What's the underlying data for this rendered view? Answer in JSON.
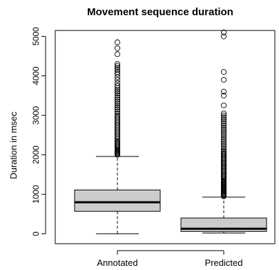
{
  "chart_data": {
    "type": "boxplot",
    "title": "Movement sequence duration",
    "xlabel": "",
    "ylabel": "Duration in msec",
    "ylim": [
      -250,
      5150
    ],
    "yticks": [
      0,
      1000,
      2000,
      3000,
      4000,
      5000
    ],
    "grid": false,
    "legend": "none",
    "box_fill": "#cccccc",
    "categories": [
      "Annotated",
      "Predicted"
    ],
    "boxes": [
      {
        "name": "Annotated",
        "whisker_low": 0,
        "q1": 570,
        "median": 800,
        "q3": 1110,
        "whisker_high": 1960,
        "outliers": [
          2000,
          2020,
          2040,
          2060,
          2080,
          2100,
          2120,
          2150,
          2180,
          2210,
          2240,
          2270,
          2300,
          2330,
          2360,
          2400,
          2440,
          2480,
          2520,
          2560,
          2600,
          2640,
          2680,
          2720,
          2760,
          2800,
          2840,
          2880,
          2920,
          2960,
          3000,
          3050,
          3100,
          3150,
          3200,
          3250,
          3300,
          3350,
          3400,
          3450,
          3500,
          3550,
          3600,
          3650,
          3700,
          3750,
          3820,
          3900,
          3970,
          4050,
          4100,
          4150,
          4200,
          4250,
          4300,
          4550,
          4700,
          4850
        ]
      },
      {
        "name": "Predicted",
        "whisker_low": 20,
        "q1": 60,
        "median": 130,
        "q3": 400,
        "whisker_high": 930,
        "outliers": [
          950,
          970,
          990,
          1010,
          1030,
          1050,
          1070,
          1090,
          1110,
          1130,
          1150,
          1170,
          1190,
          1210,
          1230,
          1250,
          1270,
          1290,
          1310,
          1330,
          1350,
          1380,
          1410,
          1440,
          1470,
          1500,
          1530,
          1560,
          1590,
          1620,
          1650,
          1680,
          1710,
          1740,
          1770,
          1800,
          1830,
          1860,
          1890,
          1920,
          1950,
          1980,
          2010,
          2040,
          2070,
          2100,
          2150,
          2200,
          2250,
          2300,
          2350,
          2400,
          2450,
          2500,
          2550,
          2600,
          2650,
          2700,
          2750,
          2800,
          2850,
          2900,
          2950,
          3000,
          3050,
          3250,
          3500,
          3600,
          3900,
          4100,
          5000,
          5100
        ]
      }
    ]
  }
}
